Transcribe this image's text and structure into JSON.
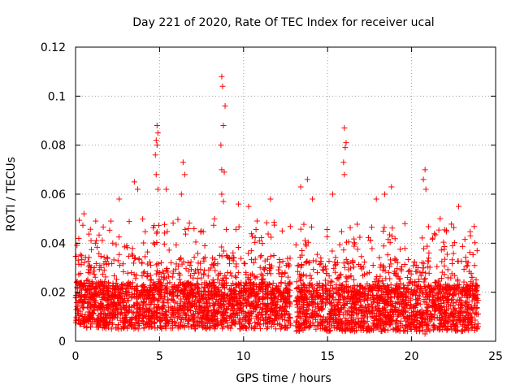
{
  "chart_data": {
    "type": "scatter",
    "title": "Day 221 of 2020, Rate Of TEC Index for receiver ucal",
    "xlabel": "GPS time / hours",
    "ylabel": "ROTI / TECUs",
    "xlim": [
      0,
      25
    ],
    "ylim": [
      0,
      0.12
    ],
    "xticks": [
      "0",
      "5",
      "10",
      "15",
      "20",
      "25"
    ],
    "yticks": [
      "0",
      "0.02",
      "0.04",
      "0.06",
      "0.08",
      "0.1",
      "0.12"
    ],
    "grid": true,
    "marker": "+",
    "color": "#ff0000",
    "notable_points": [
      {
        "x": 8.7,
        "y": 0.108
      },
      {
        "x": 8.75,
        "y": 0.104
      },
      {
        "x": 8.9,
        "y": 0.096
      },
      {
        "x": 8.8,
        "y": 0.088
      },
      {
        "x": 8.65,
        "y": 0.08
      },
      {
        "x": 8.7,
        "y": 0.07
      },
      {
        "x": 8.85,
        "y": 0.069
      },
      {
        "x": 8.7,
        "y": 0.06
      },
      {
        "x": 8.8,
        "y": 0.057
      },
      {
        "x": 4.85,
        "y": 0.088
      },
      {
        "x": 4.9,
        "y": 0.085
      },
      {
        "x": 4.8,
        "y": 0.082
      },
      {
        "x": 4.85,
        "y": 0.08
      },
      {
        "x": 4.75,
        "y": 0.076
      },
      {
        "x": 4.8,
        "y": 0.068
      },
      {
        "x": 4.9,
        "y": 0.062
      },
      {
        "x": 6.4,
        "y": 0.073
      },
      {
        "x": 6.5,
        "y": 0.068
      },
      {
        "x": 6.3,
        "y": 0.06
      },
      {
        "x": 16.0,
        "y": 0.087
      },
      {
        "x": 16.1,
        "y": 0.081
      },
      {
        "x": 16.05,
        "y": 0.079
      },
      {
        "x": 15.95,
        "y": 0.073
      },
      {
        "x": 16.0,
        "y": 0.068
      },
      {
        "x": 20.8,
        "y": 0.07
      },
      {
        "x": 20.7,
        "y": 0.066
      },
      {
        "x": 20.85,
        "y": 0.062
      },
      {
        "x": 13.8,
        "y": 0.066
      },
      {
        "x": 13.4,
        "y": 0.063
      },
      {
        "x": 14.1,
        "y": 0.058
      },
      {
        "x": 3.5,
        "y": 0.065
      },
      {
        "x": 3.7,
        "y": 0.062
      },
      {
        "x": 2.6,
        "y": 0.058
      },
      {
        "x": 5.4,
        "y": 0.062
      },
      {
        "x": 9.7,
        "y": 0.056
      },
      {
        "x": 11.6,
        "y": 0.058
      },
      {
        "x": 10.3,
        "y": 0.055
      },
      {
        "x": 15.3,
        "y": 0.06
      },
      {
        "x": 17.9,
        "y": 0.058
      },
      {
        "x": 18.8,
        "y": 0.063
      },
      {
        "x": 18.4,
        "y": 0.06
      },
      {
        "x": 22.8,
        "y": 0.055
      },
      {
        "x": 23.9,
        "y": 0.037
      },
      {
        "x": 23.5,
        "y": 0.043
      },
      {
        "x": 0.5,
        "y": 0.052
      },
      {
        "x": 1.2,
        "y": 0.049
      },
      {
        "x": 12.3,
        "y": 0.045
      },
      {
        "x": 19.6,
        "y": 0.048
      },
      {
        "x": 21.7,
        "y": 0.05
      },
      {
        "x": 20.9,
        "y": 0.004
      },
      {
        "x": 20.8,
        "y": 0.003
      }
    ],
    "bulk": {
      "description_ranges": [
        {
          "x": [
            0,
            12.8
          ],
          "y_min": 0.005,
          "y_typical": 0.018,
          "y_upper": 0.035
        },
        {
          "x": [
            13.1,
            24.0
          ],
          "y_min": 0.004,
          "y_typical": 0.017,
          "y_upper": 0.033
        }
      ],
      "data_gap_hours": [
        12.8,
        13.1
      ]
    }
  }
}
